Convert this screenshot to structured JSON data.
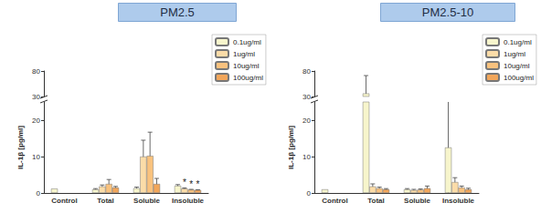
{
  "chart_data": [
    {
      "type": "bar",
      "title": "PM2.5",
      "y_label": "IL-1β [pg/ml]",
      "categories": [
        "Control",
        "Total",
        "Soluble",
        "Insoluble"
      ],
      "series": [
        {
          "name": "0.1ug/ml",
          "color": "#f7f5cc",
          "values": [
            1.2,
            1.0,
            1.3,
            2.0
          ],
          "errors": [
            null,
            0.2,
            0.3,
            0.3
          ]
        },
        {
          "name": "1ug/ml",
          "color": "#fbdca8",
          "values": [
            null,
            1.8,
            10.0,
            1.2
          ],
          "errors": [
            null,
            0.4,
            4.5,
            0.2
          ]
        },
        {
          "name": "10ug/ml",
          "color": "#f9c27e",
          "values": [
            null,
            2.5,
            10.2,
            0.9
          ],
          "errors": [
            null,
            1.2,
            6.5,
            0.1
          ]
        },
        {
          "name": "100ug/ml",
          "color": "#f2a65a",
          "values": [
            null,
            1.5,
            2.5,
            0.8
          ],
          "errors": [
            null,
            0.3,
            1.5,
            0.1
          ]
        }
      ],
      "ylim": [
        0,
        80
      ],
      "yticks": [
        0,
        10,
        20,
        30,
        80
      ],
      "y_break": [
        25,
        30
      ],
      "legend": "upper right",
      "grid": false,
      "annotations": [
        {
          "category": "Insoluble",
          "series": "1ug/ml",
          "text": "*"
        },
        {
          "category": "Insoluble",
          "series": "10ug/ml",
          "text": "*"
        },
        {
          "category": "Insoluble",
          "series": "100ug/ml",
          "text": "*"
        }
      ]
    },
    {
      "type": "bar",
      "title": "PM2.5-10",
      "y_label": "IL-1β [pg/ml]",
      "categories": [
        "Control",
        "Total",
        "Soluble",
        "Insoluble"
      ],
      "series": [
        {
          "name": "0.1ug/ml",
          "color": "#f7f5cc",
          "values": [
            1.0,
            36,
            1.0,
            12.5
          ],
          "errors": [
            null,
            35,
            0.2,
            13
          ]
        },
        {
          "name": "1ug/ml",
          "color": "#fbdca8",
          "values": [
            null,
            1.8,
            0.8,
            3.0
          ],
          "errors": [
            null,
            0.7,
            0.2,
            1.2
          ]
        },
        {
          "name": "10ug/ml",
          "color": "#f9c27e",
          "values": [
            null,
            1.3,
            0.9,
            1.5
          ],
          "errors": [
            null,
            0.3,
            0.2,
            0.4
          ]
        },
        {
          "name": "100ug/ml",
          "color": "#f2a65a",
          "values": [
            null,
            1.0,
            1.3,
            1.0
          ],
          "errors": [
            null,
            0.2,
            0.6,
            0.3
          ]
        }
      ],
      "ylim": [
        0,
        80
      ],
      "yticks": [
        0,
        10,
        20,
        30,
        80
      ],
      "y_break": [
        25,
        30
      ],
      "legend": "upper right",
      "grid": false
    }
  ]
}
